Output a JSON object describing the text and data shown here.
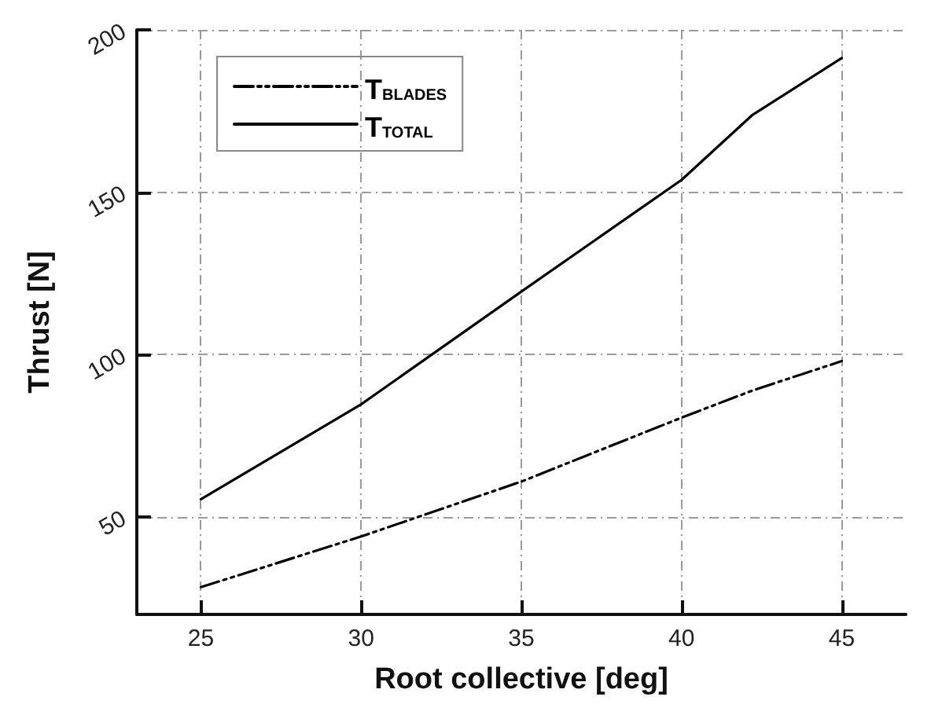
{
  "chart_data": {
    "type": "line",
    "xlabel": "Root collective [deg]",
    "ylabel": "Thrust [N]",
    "x": [
      25,
      30,
      35,
      40,
      42.2,
      45
    ],
    "series": [
      {
        "name": "T$_{BLADES}$",
        "color": "#000000",
        "line_style": "dashed",
        "values": [
          28.4,
          44,
          60.9,
          80.6,
          88.9,
          98
        ]
      },
      {
        "name": "T$_{TOTAL}$",
        "color": "#000000",
        "line_style": "solid",
        "values": [
          55.5,
          84.7,
          119.4,
          153.8,
          173.7,
          191.3
        ]
      }
    ],
    "xlim": [
      23,
      47
    ],
    "xticks": [
      25,
      30,
      35,
      40,
      45
    ],
    "ylim": [
      20,
      200
    ],
    "yticks": [
      50,
      100,
      150,
      200
    ],
    "grid": true,
    "legend": "top left",
    "marker": "none"
  }
}
